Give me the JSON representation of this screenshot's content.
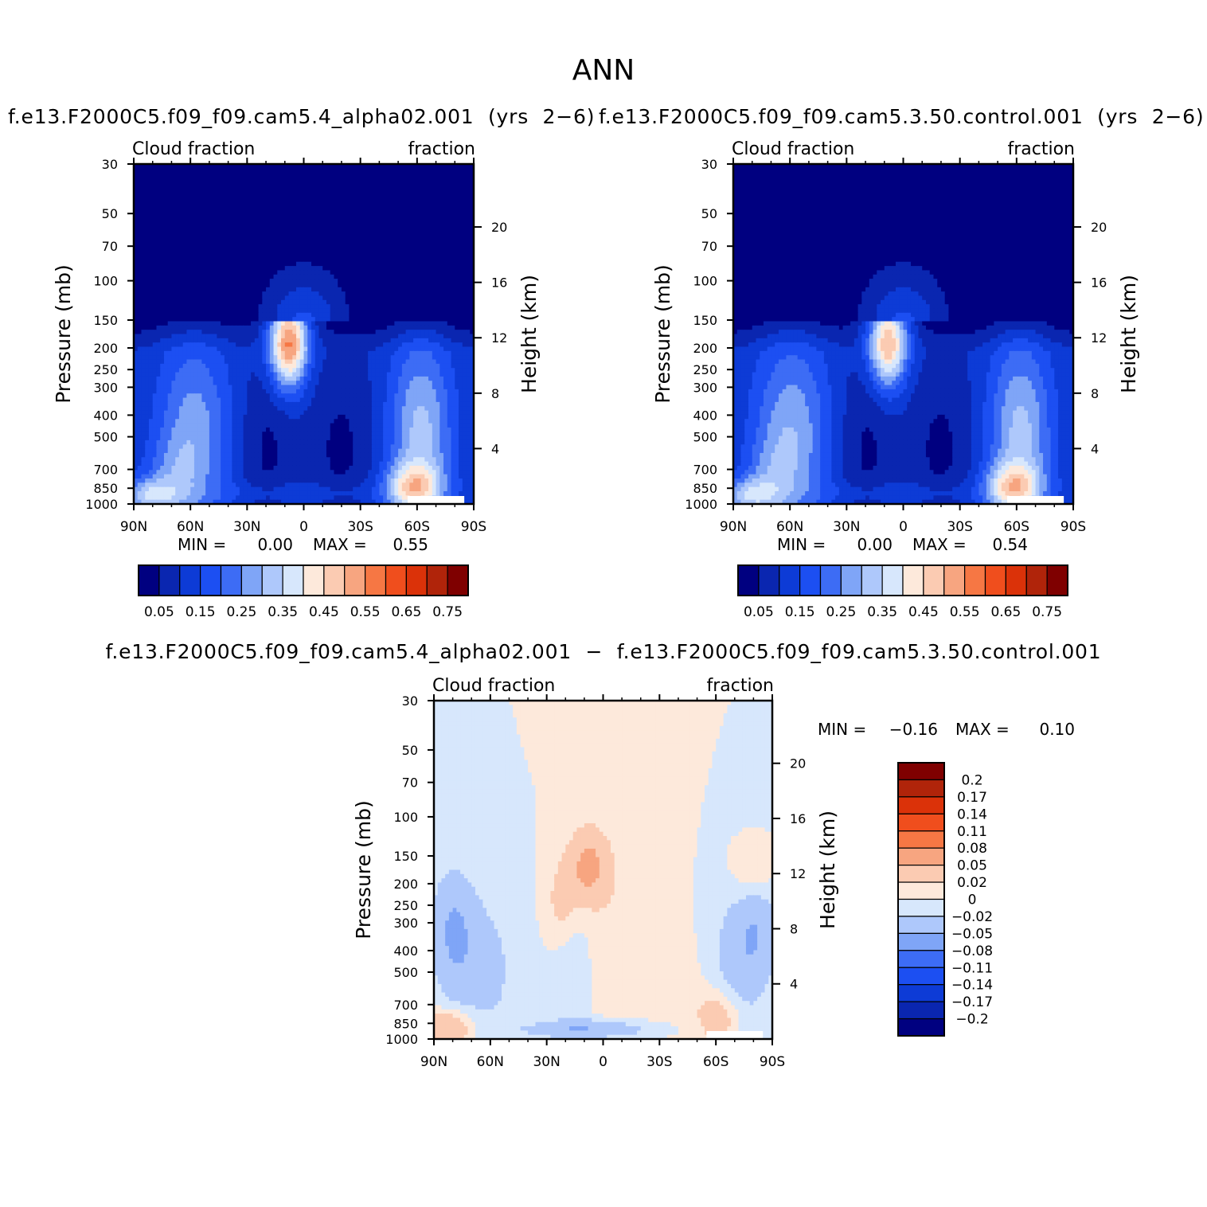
{
  "page": {
    "title": "ANN",
    "panel1_title": "f.e13.F2000C5.f09_f09.cam5.4_alpha02.001  (yrs  2−6)",
    "panel2_title": "f.e13.F2000C5.f09_f09.cam5.3.50.control.001  (yrs  2−6)",
    "diff_title": "f.e13.F2000C5.f09_f09.cam5.4_alpha02.001  −  f.e13.F2000C5.f09_f09.cam5.3.50.control.001"
  },
  "colors": {
    "background": "#ffffff",
    "field_palette": [
      "#000080",
      "#0a26b0",
      "#0d3bd6",
      "#1c4ff2",
      "#3d6cf5",
      "#7fa5f7",
      "#aec8fb",
      "#d7e7fc",
      "#fde9db",
      "#fbcbb2",
      "#f7a580",
      "#f67744",
      "#f04e1d",
      "#db3209",
      "#b0240a",
      "#7f0000"
    ],
    "diff_palette": [
      "#000080",
      "#0a26b0",
      "#0d3bd6",
      "#1c4ff2",
      "#3d6cf5",
      "#7fa5f7",
      "#aec8fb",
      "#d7e7fc",
      "#fde9db",
      "#fbcbb2",
      "#f7a580",
      "#f67744",
      "#f04e1d",
      "#db3209",
      "#b0240a",
      "#7f0000"
    ]
  },
  "chart_data": [
    {
      "type": "heatmap",
      "id": "panel1",
      "title": "f.e13.F2000C5.f09_f09.cam5.4_alpha02.001  (yrs  2−6)",
      "left_title": "Cloud fraction",
      "right_title": "fraction",
      "xlabel": "",
      "ylabel": "Pressure (mb)",
      "ylabel_right": "Height (km)",
      "x_ticks": [
        "90N",
        "60N",
        "30N",
        "0",
        "30S",
        "60S",
        "90S"
      ],
      "y_ticks": [
        "30",
        "50",
        "70",
        "100",
        "150",
        "200",
        "250",
        "300",
        "400",
        "500",
        "700",
        "850",
        "1000"
      ],
      "y_ticks_right": [
        "20",
        "16",
        "12",
        "8",
        "4"
      ],
      "xlim": [
        -90,
        90
      ],
      "ylim": [
        1000,
        30
      ],
      "y_scale": "log",
      "min_label": "MIN =",
      "min_value": "0.00",
      "max_label": "MAX =",
      "max_value": "0.55",
      "colorbar_labels": [
        "0.05",
        "0.15",
        "0.25",
        "0.35",
        "0.45",
        "0.55",
        "0.65",
        "0.75"
      ],
      "colorbar_levels": [
        0.05,
        0.1,
        0.15,
        0.2,
        0.25,
        0.3,
        0.35,
        0.4,
        0.45,
        0.5,
        0.55,
        0.6,
        0.65,
        0.7,
        0.75
      ],
      "legend": "bottom"
    },
    {
      "type": "heatmap",
      "id": "panel2",
      "title": "f.e13.F2000C5.f09_f09.cam5.3.50.control.001  (yrs  2−6)",
      "left_title": "Cloud fraction",
      "right_title": "fraction",
      "xlabel": "",
      "ylabel": "Pressure (mb)",
      "ylabel_right": "Height (km)",
      "x_ticks": [
        "90N",
        "60N",
        "30N",
        "0",
        "30S",
        "60S",
        "90S"
      ],
      "y_ticks": [
        "30",
        "50",
        "70",
        "100",
        "150",
        "200",
        "250",
        "300",
        "400",
        "500",
        "700",
        "850",
        "1000"
      ],
      "y_ticks_right": [
        "20",
        "16",
        "12",
        "8",
        "4"
      ],
      "xlim": [
        -90,
        90
      ],
      "ylim": [
        1000,
        30
      ],
      "y_scale": "log",
      "min_label": "MIN =",
      "min_value": "0.00",
      "max_label": "MAX =",
      "max_value": "0.54",
      "colorbar_labels": [
        "0.05",
        "0.15",
        "0.25",
        "0.35",
        "0.45",
        "0.55",
        "0.65",
        "0.75"
      ],
      "colorbar_levels": [
        0.05,
        0.1,
        0.15,
        0.2,
        0.25,
        0.3,
        0.35,
        0.4,
        0.45,
        0.5,
        0.55,
        0.6,
        0.65,
        0.7,
        0.75
      ],
      "legend": "bottom"
    },
    {
      "type": "heatmap",
      "id": "diff",
      "title": "f.e13.F2000C5.f09_f09.cam5.4_alpha02.001  −  f.e13.F2000C5.f09_f09.cam5.3.50.control.001",
      "left_title": "Cloud fraction",
      "right_title": "fraction",
      "xlabel": "",
      "ylabel": "Pressure (mb)",
      "ylabel_right": "Height (km)",
      "x_ticks": [
        "90N",
        "60N",
        "30N",
        "0",
        "30S",
        "60S",
        "90S"
      ],
      "y_ticks": [
        "30",
        "50",
        "70",
        "100",
        "150",
        "200",
        "250",
        "300",
        "400",
        "500",
        "700",
        "850",
        "1000"
      ],
      "y_ticks_right": [
        "20",
        "16",
        "12",
        "8",
        "4"
      ],
      "xlim": [
        -90,
        90
      ],
      "ylim": [
        1000,
        30
      ],
      "y_scale": "log",
      "min_label": "MIN =",
      "min_value": "−0.16",
      "max_label": "MAX =",
      "max_value": "0.10",
      "colorbar_labels": [
        "0.2",
        "0.17",
        "0.14",
        "0.11",
        "0.08",
        "0.05",
        "0.02",
        "0",
        "−0.02",
        "−0.05",
        "−0.08",
        "−0.11",
        "−0.14",
        "−0.17",
        "−0.2"
      ],
      "colorbar_levels": [
        0.2,
        0.17,
        0.14,
        0.11,
        0.08,
        0.05,
        0.02,
        0,
        -0.02,
        -0.05,
        -0.08,
        -0.11,
        -0.14,
        -0.17,
        -0.2
      ],
      "legend": "right"
    }
  ]
}
